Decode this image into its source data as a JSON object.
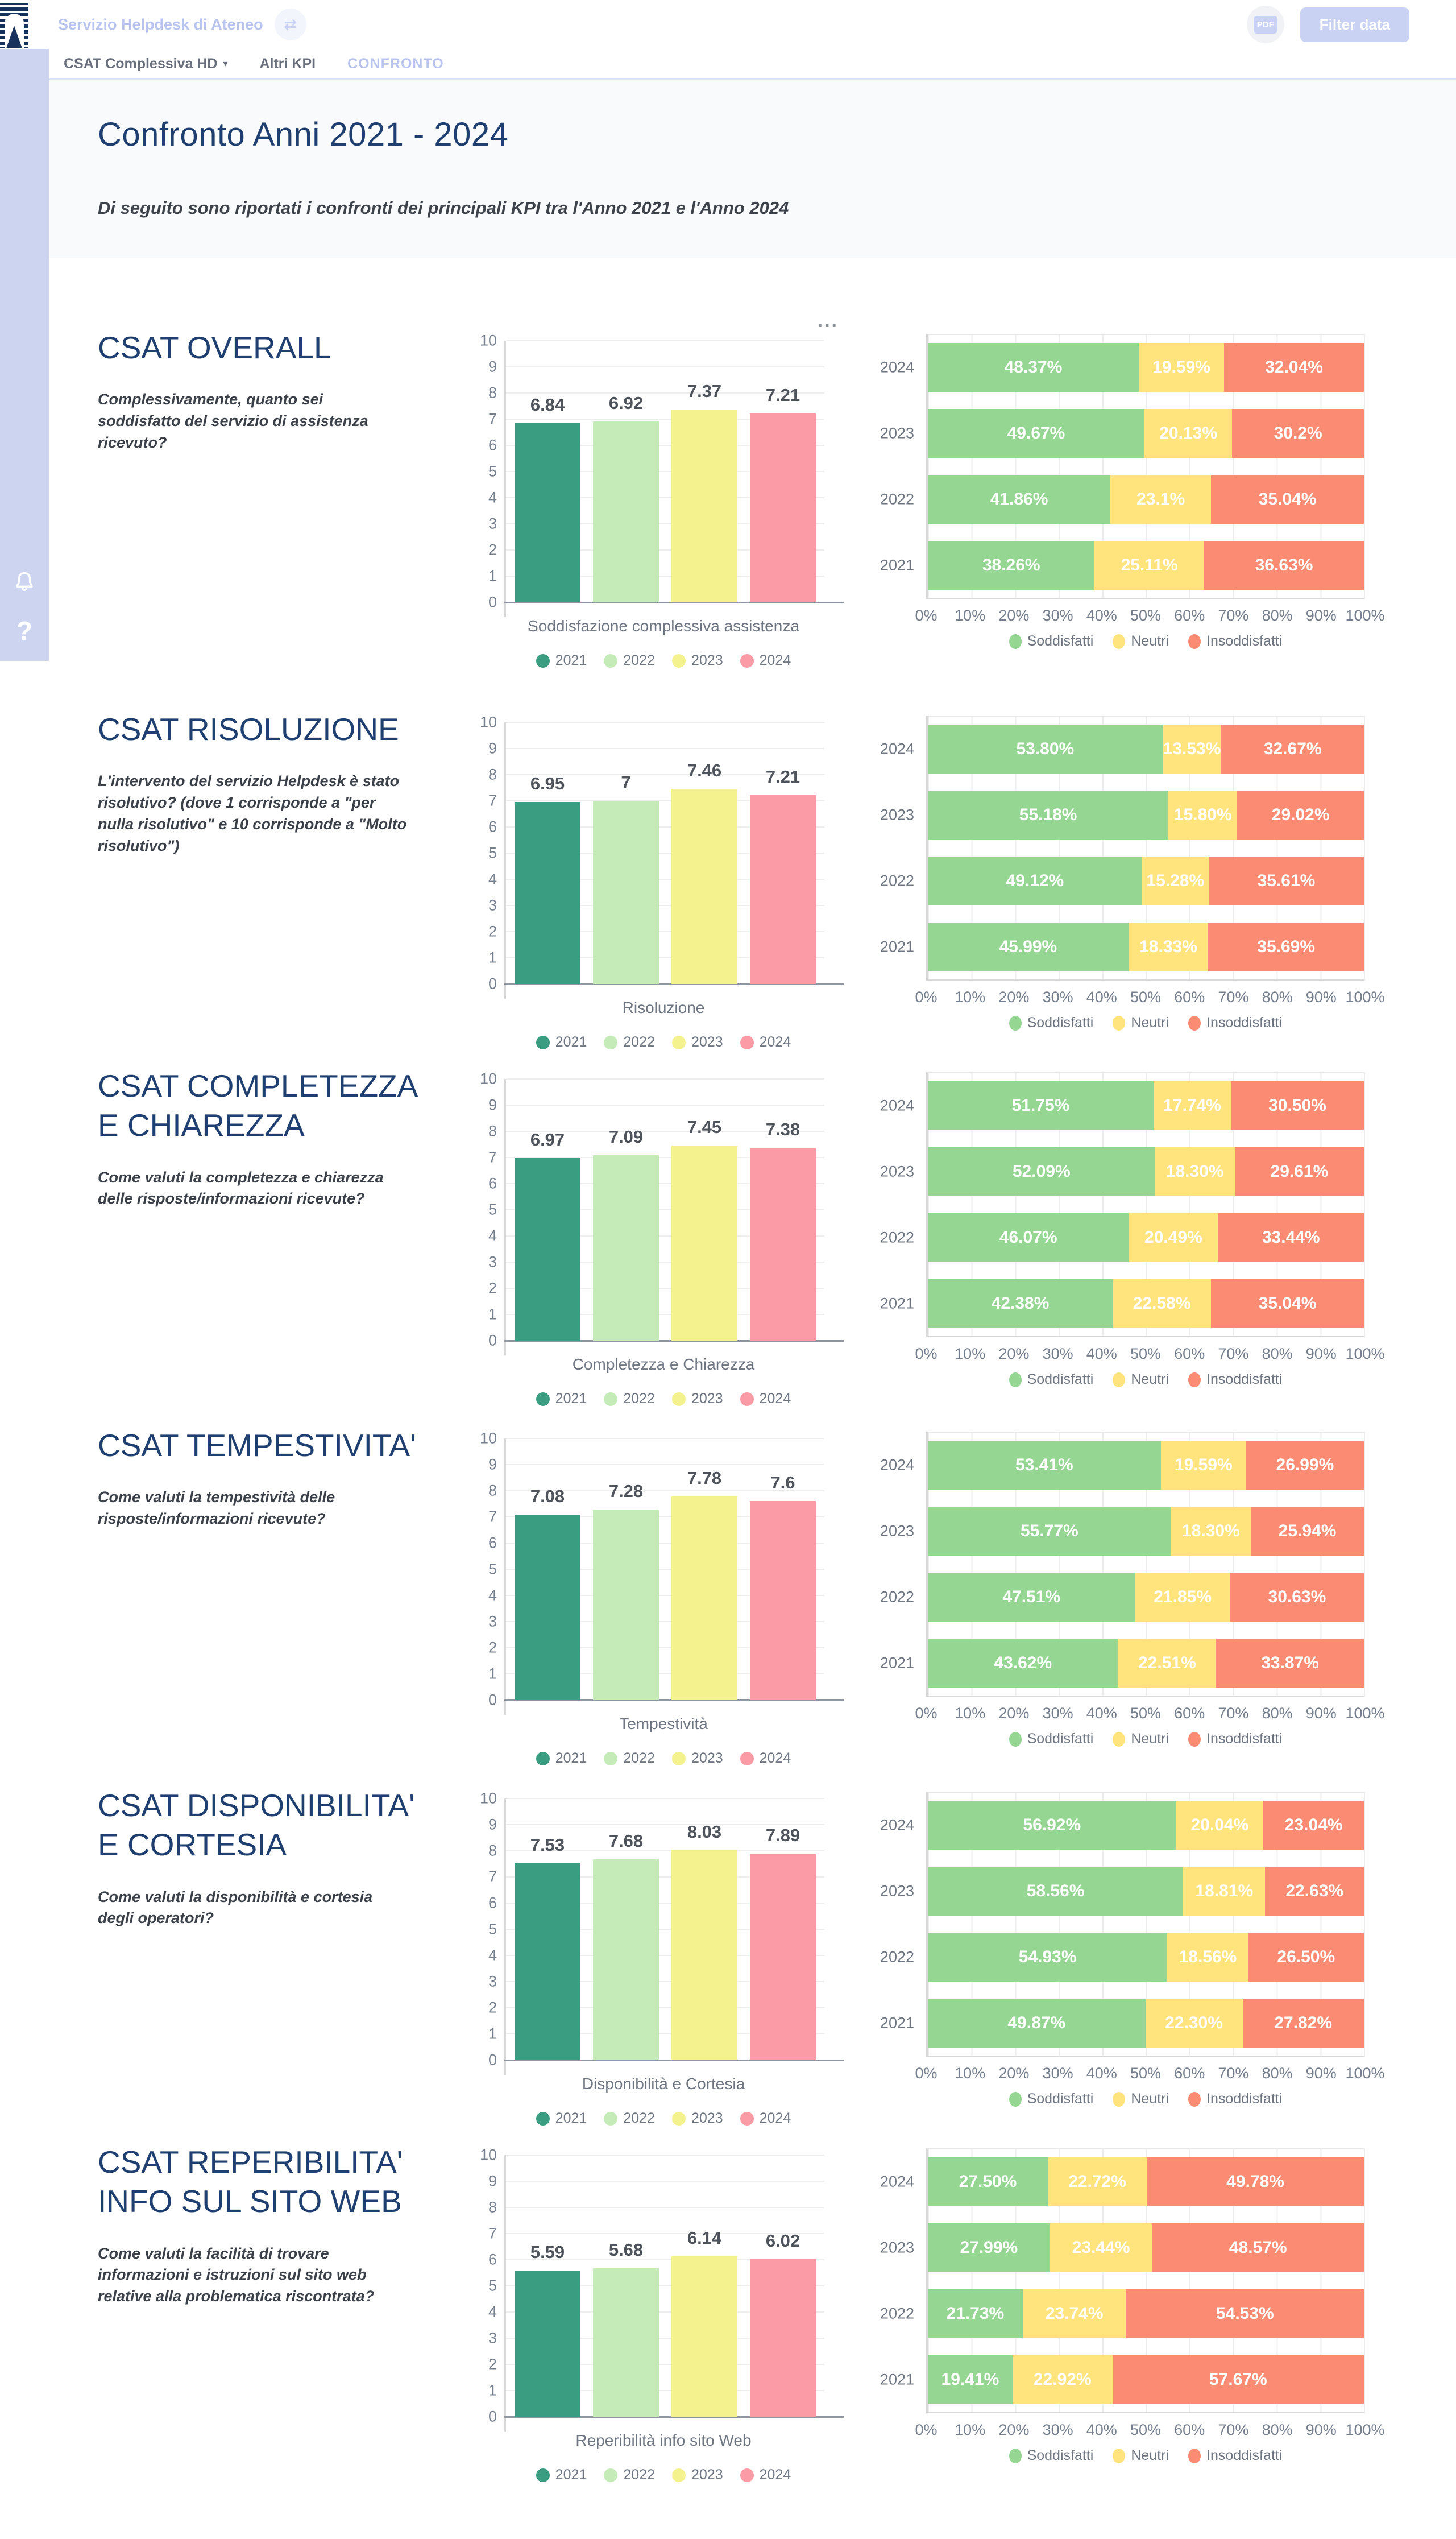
{
  "topbar": {
    "app_title": "Servizio Helpdesk di Ateneo",
    "refresh_glyph": "⇄",
    "pdf_badge": "PDF",
    "filter_button_label": "Filter data"
  },
  "tabs": [
    {
      "label": "CSAT Complessiva HD",
      "has_dropdown": true,
      "active": false
    },
    {
      "label": "Altri KPI",
      "has_dropdown": false,
      "active": false
    },
    {
      "label": "CONFRONTO",
      "has_dropdown": false,
      "active": true
    }
  ],
  "page_header": {
    "title": "Confronto Anni 2021 - 2024",
    "subtitle": "Di seguito sono riportati i confronti dei principali KPI tra l'Anno 2021 e l'Anno 2024"
  },
  "sidebar": {
    "help_glyph": "?"
  },
  "card_menu_ellipsis": "...",
  "legend": {
    "years": [
      "2021",
      "2022",
      "2023",
      "2024"
    ],
    "sentiment": [
      "Soddisfatti",
      "Neutri",
      "Insoddisfatti"
    ]
  },
  "axes": {
    "bar_yticks": [
      "0",
      "1",
      "2",
      "3",
      "4",
      "5",
      "6",
      "7",
      "8",
      "9",
      "10"
    ],
    "pct_ticks": [
      "0%",
      "10%",
      "20%",
      "30%",
      "40%",
      "50%",
      "60%",
      "70%",
      "80%",
      "90%",
      "100%"
    ]
  },
  "colors": {
    "navy": "#1e3f70",
    "accent_lavender": "#c9d2f2",
    "sidebar_lavender": "#ccd4f0",
    "year_2021": "#3a9c80",
    "year_2022": "#c5ecb8",
    "year_2023": "#f4f28e",
    "year_2024": "#fa9ba6",
    "soddisfatti": "#96d693",
    "neutri": "#ffe47d",
    "insoddisfatti": "#fb8b72"
  },
  "sections": [
    {
      "title": "CSAT OVERALL",
      "description": "Complessivamente, quanto sei soddisfatto del servizio di assistenza ricevuto?"
    },
    {
      "title": "CSAT RISOLUZIONE",
      "description": "L'intervento del servizio Helpdesk è stato risolutivo? (dove 1 corrisponde a \"per nulla risolutivo\" e 10 corrisponde a \"Molto risolutivo\")"
    },
    {
      "title": "CSAT COMPLETEZZA E CHIAREZZA",
      "description": "Come valuti la completezza e chiarezza delle risposte/informazioni ricevute?"
    },
    {
      "title": "CSAT TEMPESTIVITA'",
      "description": "Come valuti la tempestività delle risposte/informazioni ricevute?"
    },
    {
      "title": "CSAT DISPONIBILITA' E CORTESIA",
      "description": "Come valuti la disponibilità e cortesia degli operatori?"
    },
    {
      "title": "CSAT REPERIBILITA' INFO SUL SITO WEB",
      "description": "Come valuti la facilità di trovare informazioni e istruzioni sul sito web relative alla problematica riscontrata?"
    }
  ],
  "chart_data": [
    {
      "type": "bar",
      "section": "CSAT OVERALL",
      "categories": [
        "2021",
        "2022",
        "2023",
        "2024"
      ],
      "values": [
        6.84,
        6.92,
        7.37,
        7.21
      ],
      "value_labels": [
        "6.84",
        "6.92",
        "7.37",
        "7.21"
      ],
      "xlabel": "Soddisfazione complessiva assistenza",
      "ylabel": "",
      "ylim": [
        0,
        10
      ],
      "grid": true,
      "legend_position": "bottom"
    },
    {
      "type": "stacked-bar-horizontal",
      "section": "CSAT OVERALL",
      "categories": [
        "2024",
        "2023",
        "2022",
        "2021"
      ],
      "xlim": [
        0,
        100
      ],
      "series": [
        {
          "name": "Soddisfatti",
          "values": [
            48.37,
            49.67,
            41.86,
            38.26
          ]
        },
        {
          "name": "Neutri",
          "values": [
            19.59,
            20.13,
            23.1,
            25.11
          ]
        },
        {
          "name": "Insoddisfatti",
          "values": [
            32.04,
            30.2,
            35.04,
            36.63
          ]
        }
      ],
      "labels": [
        [
          "48.37%",
          "19.59%",
          "32.04%"
        ],
        [
          "49.67%",
          "20.13%",
          "30.2%"
        ],
        [
          "41.86%",
          "23.1%",
          "35.04%"
        ],
        [
          "38.26%",
          "25.11%",
          "36.63%"
        ]
      ]
    },
    {
      "type": "bar",
      "section": "CSAT RISOLUZIONE",
      "categories": [
        "2021",
        "2022",
        "2023",
        "2024"
      ],
      "values": [
        6.95,
        7,
        7.46,
        7.21
      ],
      "value_labels": [
        "6.95",
        "7",
        "7.46",
        "7.21"
      ],
      "xlabel": "Risoluzione",
      "ylabel": "",
      "ylim": [
        0,
        10
      ],
      "grid": true,
      "legend_position": "bottom"
    },
    {
      "type": "stacked-bar-horizontal",
      "section": "CSAT RISOLUZIONE",
      "categories": [
        "2024",
        "2023",
        "2022",
        "2021"
      ],
      "xlim": [
        0,
        100
      ],
      "series": [
        {
          "name": "Soddisfatti",
          "values": [
            53.8,
            55.18,
            49.12,
            45.99
          ]
        },
        {
          "name": "Neutri",
          "values": [
            13.53,
            15.8,
            15.28,
            18.33
          ]
        },
        {
          "name": "Insoddisfatti",
          "values": [
            32.67,
            29.02,
            35.61,
            35.69
          ]
        }
      ],
      "labels": [
        [
          "53.80%",
          "13.53%",
          "32.67%"
        ],
        [
          "55.18%",
          "15.80%",
          "29.02%"
        ],
        [
          "49.12%",
          "15.28%",
          "35.61%"
        ],
        [
          "45.99%",
          "18.33%",
          "35.69%"
        ]
      ]
    },
    {
      "type": "bar",
      "section": "CSAT COMPLETEZZA E CHIAREZZA",
      "categories": [
        "2021",
        "2022",
        "2023",
        "2024"
      ],
      "values": [
        6.97,
        7.09,
        7.45,
        7.38
      ],
      "value_labels": [
        "6.97",
        "7.09",
        "7.45",
        "7.38"
      ],
      "xlabel": "Completezza e Chiarezza",
      "ylabel": "",
      "ylim": [
        0,
        10
      ],
      "grid": true,
      "legend_position": "bottom"
    },
    {
      "type": "stacked-bar-horizontal",
      "section": "CSAT COMPLETEZZA E CHIAREZZA",
      "categories": [
        "2024",
        "2023",
        "2022",
        "2021"
      ],
      "xlim": [
        0,
        100
      ],
      "series": [
        {
          "name": "Soddisfatti",
          "values": [
            51.75,
            52.09,
            46.07,
            42.38
          ]
        },
        {
          "name": "Neutri",
          "values": [
            17.74,
            18.3,
            20.49,
            22.58
          ]
        },
        {
          "name": "Insoddisfatti",
          "values": [
            30.5,
            29.61,
            33.44,
            35.04
          ]
        }
      ],
      "labels": [
        [
          "51.75%",
          "17.74%",
          "30.50%"
        ],
        [
          "52.09%",
          "18.30%",
          "29.61%"
        ],
        [
          "46.07%",
          "20.49%",
          "33.44%"
        ],
        [
          "42.38%",
          "22.58%",
          "35.04%"
        ]
      ]
    },
    {
      "type": "bar",
      "section": "CSAT TEMPESTIVITA'",
      "categories": [
        "2021",
        "2022",
        "2023",
        "2024"
      ],
      "values": [
        7.08,
        7.28,
        7.78,
        7.6
      ],
      "value_labels": [
        "7.08",
        "7.28",
        "7.78",
        "7.6"
      ],
      "xlabel": "Tempestività",
      "ylabel": "",
      "ylim": [
        0,
        10
      ],
      "grid": true,
      "legend_position": "bottom"
    },
    {
      "type": "stacked-bar-horizontal",
      "section": "CSAT TEMPESTIVITA'",
      "categories": [
        "2024",
        "2023",
        "2022",
        "2021"
      ],
      "xlim": [
        0,
        100
      ],
      "series": [
        {
          "name": "Soddisfatti",
          "values": [
            53.41,
            55.77,
            47.51,
            43.62
          ]
        },
        {
          "name": "Neutri",
          "values": [
            19.59,
            18.3,
            21.85,
            22.51
          ]
        },
        {
          "name": "Insoddisfatti",
          "values": [
            26.99,
            25.94,
            30.63,
            33.87
          ]
        }
      ],
      "labels": [
        [
          "53.41%",
          "19.59%",
          "26.99%"
        ],
        [
          "55.77%",
          "18.30%",
          "25.94%"
        ],
        [
          "47.51%",
          "21.85%",
          "30.63%"
        ],
        [
          "43.62%",
          "22.51%",
          "33.87%"
        ]
      ]
    },
    {
      "type": "bar",
      "section": "CSAT DISPONIBILITA' E CORTESIA",
      "categories": [
        "2021",
        "2022",
        "2023",
        "2024"
      ],
      "values": [
        7.53,
        7.68,
        8.03,
        7.89
      ],
      "value_labels": [
        "7.53",
        "7.68",
        "8.03",
        "7.89"
      ],
      "xlabel": "Disponibilità e Cortesia",
      "ylabel": "",
      "ylim": [
        0,
        10
      ],
      "grid": true,
      "legend_position": "bottom"
    },
    {
      "type": "stacked-bar-horizontal",
      "section": "CSAT DISPONIBILITA' E CORTESIA",
      "categories": [
        "2024",
        "2023",
        "2022",
        "2021"
      ],
      "xlim": [
        0,
        100
      ],
      "series": [
        {
          "name": "Soddisfatti",
          "values": [
            56.92,
            58.56,
            54.93,
            49.87
          ]
        },
        {
          "name": "Neutri",
          "values": [
            20.04,
            18.81,
            18.56,
            22.3
          ]
        },
        {
          "name": "Insoddisfatti",
          "values": [
            23.04,
            22.63,
            26.5,
            27.82
          ]
        }
      ],
      "labels": [
        [
          "56.92%",
          "20.04%",
          "23.04%"
        ],
        [
          "58.56%",
          "18.81%",
          "22.63%"
        ],
        [
          "54.93%",
          "18.56%",
          "26.50%"
        ],
        [
          "49.87%",
          "22.30%",
          "27.82%"
        ]
      ]
    },
    {
      "type": "bar",
      "section": "CSAT REPERIBILITA' INFO SUL SITO WEB",
      "categories": [
        "2021",
        "2022",
        "2023",
        "2024"
      ],
      "values": [
        5.59,
        5.68,
        6.14,
        6.02
      ],
      "value_labels": [
        "5.59",
        "5.68",
        "6.14",
        "6.02"
      ],
      "xlabel": "Reperibilità info sito Web",
      "ylabel": "",
      "ylim": [
        0,
        10
      ],
      "grid": true,
      "legend_position": "bottom"
    },
    {
      "type": "stacked-bar-horizontal",
      "section": "CSAT REPERIBILITA' INFO SUL SITO WEB",
      "categories": [
        "2024",
        "2023",
        "2022",
        "2021"
      ],
      "xlim": [
        0,
        100
      ],
      "series": [
        {
          "name": "Soddisfatti",
          "values": [
            27.5,
            27.99,
            21.73,
            19.41
          ]
        },
        {
          "name": "Neutri",
          "values": [
            22.72,
            23.44,
            23.74,
            22.92
          ]
        },
        {
          "name": "Insoddisfatti",
          "values": [
            49.78,
            48.57,
            54.53,
            57.67
          ]
        }
      ],
      "labels": [
        [
          "27.50%",
          "22.72%",
          "49.78%"
        ],
        [
          "27.99%",
          "23.44%",
          "48.57%"
        ],
        [
          "21.73%",
          "23.74%",
          "54.53%"
        ],
        [
          "19.41%",
          "22.92%",
          "57.67%"
        ]
      ]
    }
  ]
}
